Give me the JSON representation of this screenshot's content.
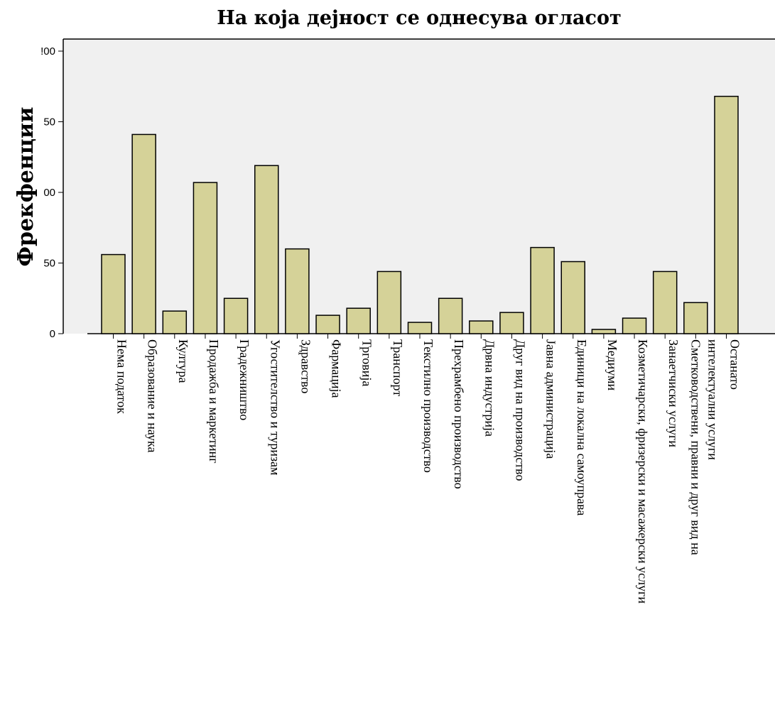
{
  "chart_data": {
    "type": "bar",
    "title": "На која дејност се однесува огласот",
    "xlabel": "",
    "ylabel": "Фрекфенции",
    "ylim": [
      0,
      200
    ],
    "yticks": [
      "0",
      "50",
      "00",
      "50",
      "!00"
    ],
    "grid": false,
    "categories": [
      "Нема податок",
      "Образование и наука",
      "Култура",
      "Продажба и маркетинг",
      "Градежништво",
      "Угостителство и туризам",
      "Здравство",
      "Фармација",
      "Трговија",
      "Транспорт",
      "Текстилно производство",
      "Прехрамбено производство",
      "Дрвна индустрија",
      "Друг вид на производство",
      "Јавна администрација",
      "Единици на локална самоуправа",
      "Медиуми",
      "Козметичарски, фризерски и масажерски услуги",
      "Занаетчиски услуги",
      [
        "Сметководствени, правни и друг вид на",
        "интелектуални услуги"
      ],
      "Останато"
    ],
    "values": [
      56,
      141,
      16,
      107,
      25,
      119,
      60,
      13,
      18,
      44,
      8,
      25,
      9,
      15,
      61,
      51,
      3,
      11,
      44,
      22,
      168
    ],
    "colors": {
      "plot_bg": "#f0f0f0",
      "bar_fill": "#d5d298",
      "bar_stroke": "#000000"
    }
  }
}
